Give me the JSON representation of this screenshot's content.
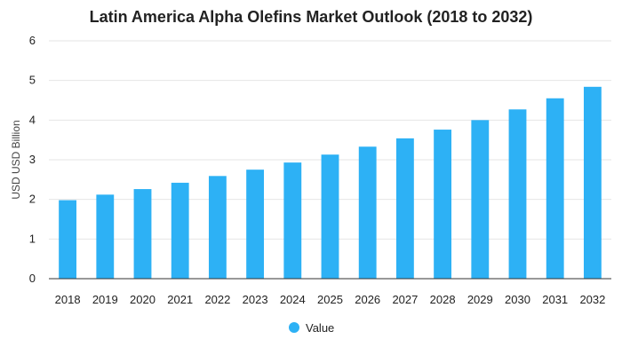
{
  "chart_data": {
    "type": "bar",
    "title": "Latin America Alpha Olefins Market Outlook (2018 to 2032)",
    "xlabel": "",
    "ylabel": "USD USD Billion",
    "ylim": [
      0,
      6
    ],
    "yticks": [
      0,
      1,
      2,
      3,
      4,
      5,
      6
    ],
    "grid": true,
    "legend_position": "bottom-center",
    "categories": [
      "2018",
      "2019",
      "2020",
      "2021",
      "2022",
      "2023",
      "2024",
      "2025",
      "2026",
      "2027",
      "2028",
      "2029",
      "2030",
      "2031",
      "2032"
    ],
    "series": [
      {
        "name": "Value",
        "color": "#2db1f5",
        "values": [
          1.98,
          2.12,
          2.26,
          2.42,
          2.59,
          2.75,
          2.93,
          3.13,
          3.33,
          3.54,
          3.76,
          4.0,
          4.27,
          4.55,
          4.84
        ]
      }
    ]
  }
}
